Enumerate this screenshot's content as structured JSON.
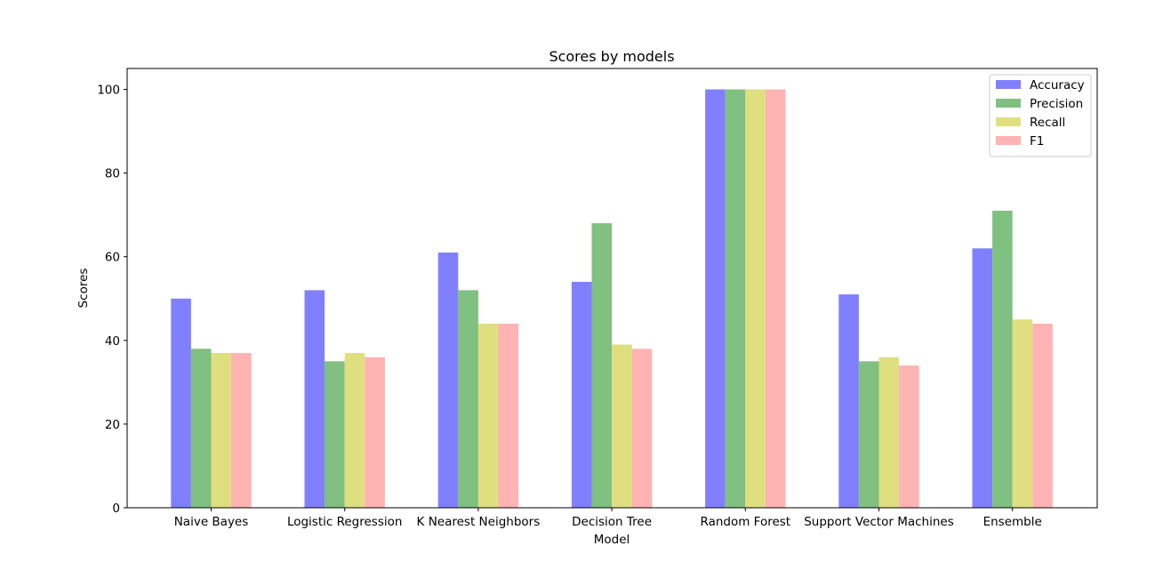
{
  "chart_data": {
    "type": "bar",
    "title": "Scores by models",
    "xlabel": "Model",
    "ylabel": "Scores",
    "categories": [
      "Naive Bayes",
      "Logistic Regression",
      "K Nearest Neighbors",
      "Decision Tree",
      "Random Forest",
      "Support Vector Machines",
      "Ensemble"
    ],
    "series": [
      {
        "name": "Accuracy",
        "color": "#8080ff",
        "values": [
          50,
          52,
          61,
          54,
          100,
          51,
          62
        ]
      },
      {
        "name": "Precision",
        "color": "#80c080",
        "values": [
          38,
          35,
          52,
          68,
          100,
          35,
          71
        ]
      },
      {
        "name": "Recall",
        "color": "#dfdf80",
        "values": [
          37,
          37,
          44,
          39,
          100,
          36,
          45
        ]
      },
      {
        "name": "F1",
        "color": "#ffb3b3",
        "values": [
          37,
          36,
          44,
          38,
          100,
          34,
          44
        ]
      }
    ],
    "ylim": [
      0,
      105
    ],
    "yticks": [
      0,
      20,
      40,
      60,
      80,
      100
    ],
    "grid": false,
    "legend": "top-right"
  }
}
